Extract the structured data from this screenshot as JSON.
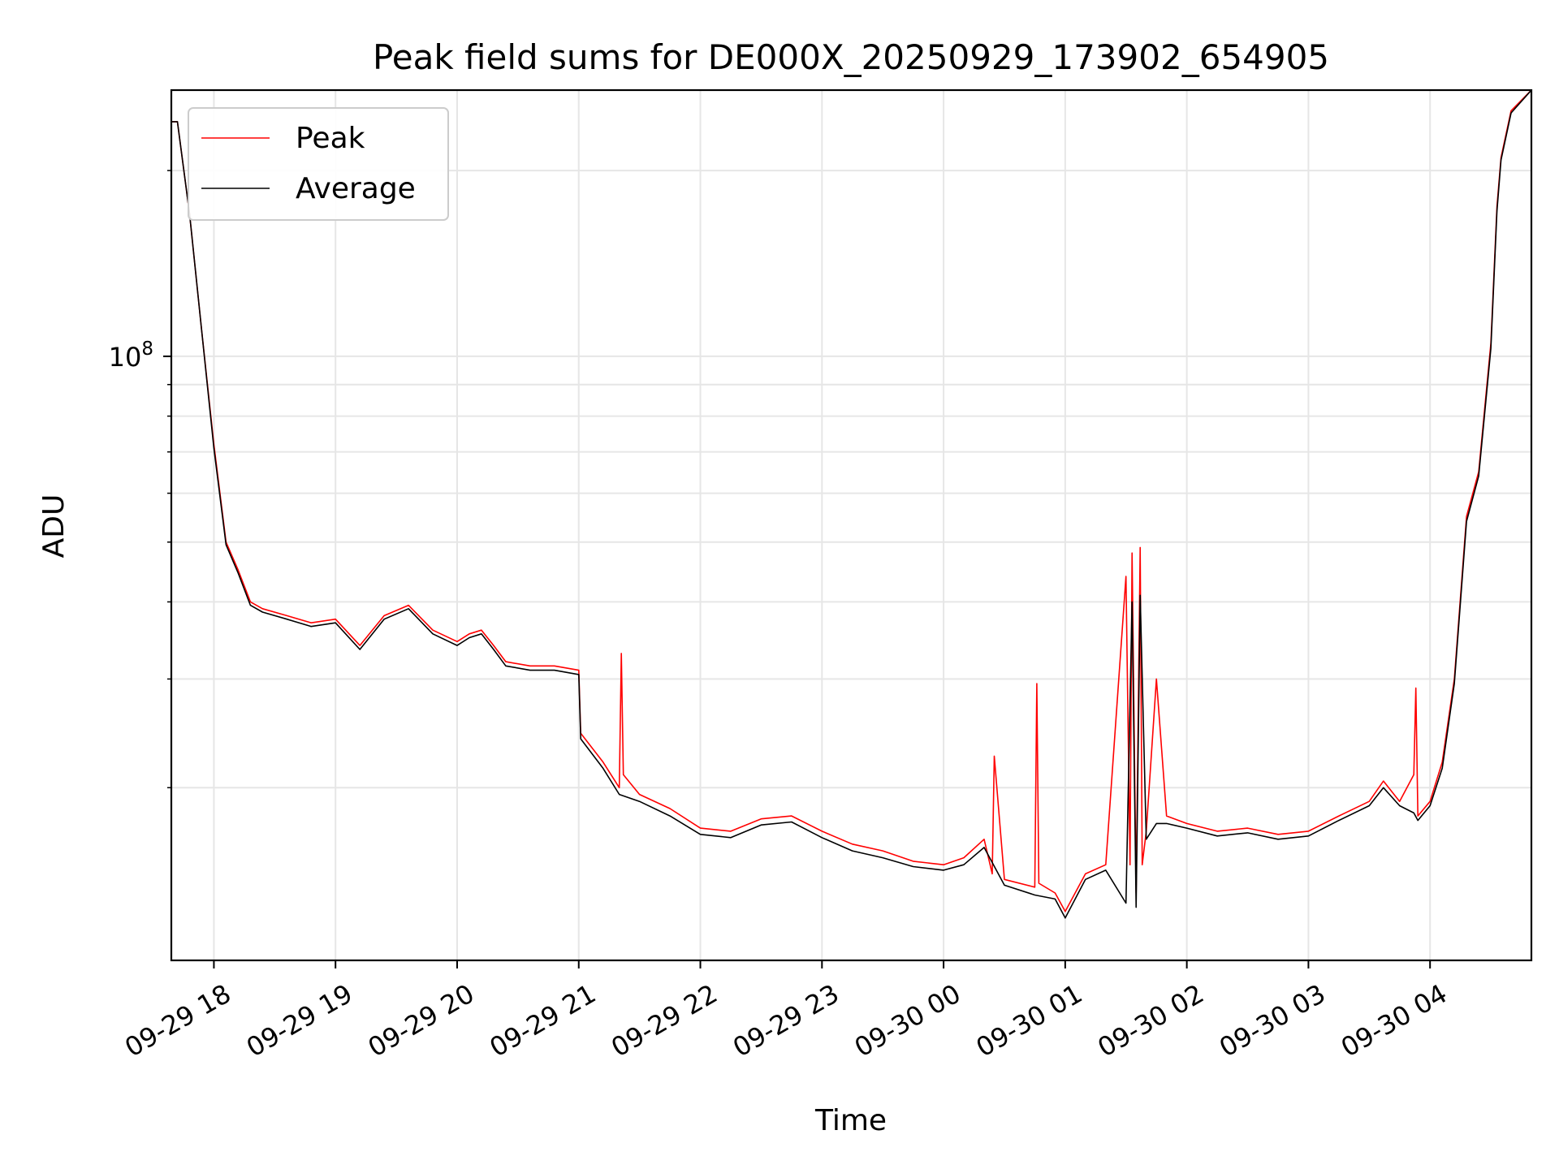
{
  "chart_data": {
    "type": "line",
    "title": "Peak field sums for DE000X_20250929_173902_654905",
    "xlabel": "Time",
    "ylabel": "ADU",
    "y_scale": "log",
    "ylim": [
      10500000,
      270000000
    ],
    "xlim": [
      "2025-09-29 17:39",
      "2025-09-30 04:50"
    ],
    "y_tick_labels": [
      {
        "value": 100000000,
        "label": "10^8"
      }
    ],
    "x_tick_labels": [
      "09-29 18",
      "09-29 19",
      "09-29 20",
      "09-29 21",
      "09-29 22",
      "09-29 23",
      "09-30 00",
      "09-30 01",
      "09-30 02",
      "09-30 03",
      "09-30 04"
    ],
    "x_ticks": [
      "2025-09-29 18:00",
      "2025-09-29 19:00",
      "2025-09-29 20:00",
      "2025-09-29 21:00",
      "2025-09-29 22:00",
      "2025-09-29 23:00",
      "2025-09-30 00:00",
      "2025-09-30 01:00",
      "2025-09-30 02:00",
      "2025-09-30 03:00",
      "2025-09-30 04:00"
    ],
    "grid": true,
    "legend_position": "upper-left",
    "series": [
      {
        "name": "Peak",
        "color": "#ff0000",
        "x": [
          "2025-09-29 17:39",
          "2025-09-29 17:42",
          "2025-09-29 17:48",
          "2025-09-29 17:54",
          "2025-09-29 18:00",
          "2025-09-29 18:06",
          "2025-09-29 18:12",
          "2025-09-29 18:18",
          "2025-09-29 18:24",
          "2025-09-29 18:36",
          "2025-09-29 18:48",
          "2025-09-29 19:00",
          "2025-09-29 19:12",
          "2025-09-29 19:24",
          "2025-09-29 19:36",
          "2025-09-29 19:48",
          "2025-09-29 20:00",
          "2025-09-29 20:06",
          "2025-09-29 20:12",
          "2025-09-29 20:18",
          "2025-09-29 20:24",
          "2025-09-29 20:36",
          "2025-09-29 20:48",
          "2025-09-29 21:00",
          "2025-09-29 21:01",
          "2025-09-29 21:12",
          "2025-09-29 21:20",
          "2025-09-29 21:21",
          "2025-09-29 21:22",
          "2025-09-29 21:30",
          "2025-09-29 21:45",
          "2025-09-29 22:00",
          "2025-09-29 22:15",
          "2025-09-29 22:30",
          "2025-09-29 22:45",
          "2025-09-29 23:00",
          "2025-09-29 23:15",
          "2025-09-29 23:30",
          "2025-09-29 23:45",
          "2025-09-30 00:00",
          "2025-09-30 00:10",
          "2025-09-30 00:20",
          "2025-09-30 00:24",
          "2025-09-30 00:25",
          "2025-09-30 00:30",
          "2025-09-30 00:45",
          "2025-09-30 00:46",
          "2025-09-30 00:47",
          "2025-09-30 00:55",
          "2025-09-30 01:00",
          "2025-09-30 01:10",
          "2025-09-30 01:20",
          "2025-09-30 01:30",
          "2025-09-30 01:32",
          "2025-09-30 01:33",
          "2025-09-30 01:35",
          "2025-09-30 01:37",
          "2025-09-30 01:38",
          "2025-09-30 01:40",
          "2025-09-30 01:45",
          "2025-09-30 01:50",
          "2025-09-30 02:00",
          "2025-09-30 02:15",
          "2025-09-30 02:30",
          "2025-09-30 02:45",
          "2025-09-30 03:00",
          "2025-09-30 03:15",
          "2025-09-30 03:30",
          "2025-09-30 03:37",
          "2025-09-30 03:45",
          "2025-09-30 03:52",
          "2025-09-30 03:53",
          "2025-09-30 03:54",
          "2025-09-30 04:00",
          "2025-09-30 04:06",
          "2025-09-30 04:12",
          "2025-09-30 04:18",
          "2025-09-30 04:24",
          "2025-09-30 04:30",
          "2025-09-30 04:33",
          "2025-09-30 04:35",
          "2025-09-30 04:40",
          "2025-09-30 04:50"
        ],
        "y": [
          240000000,
          240000000,
          170000000,
          110000000,
          72000000,
          50000000,
          45000000,
          40000000,
          39000000,
          38000000,
          37000000,
          37500000,
          34000000,
          38000000,
          39500000,
          36000000,
          34500000,
          35500000,
          36000000,
          34000000,
          32000000,
          31500000,
          31500000,
          31000000,
          24500000,
          22000000,
          20000000,
          33000000,
          21000000,
          19500000,
          18500000,
          17200000,
          17000000,
          17800000,
          18000000,
          17000000,
          16200000,
          15800000,
          15200000,
          15000000,
          15400000,
          16500000,
          14500000,
          22500000,
          14200000,
          13800000,
          29500000,
          14000000,
          13500000,
          12600000,
          14500000,
          15000000,
          44000000,
          15000000,
          48000000,
          13500000,
          49000000,
          15000000,
          17000000,
          30000000,
          18000000,
          17500000,
          17000000,
          17200000,
          16800000,
          17000000,
          18000000,
          19000000,
          20500000,
          19000000,
          21000000,
          29000000,
          18000000,
          19000000,
          22000000,
          30000000,
          55000000,
          65000000,
          105000000,
          175000000,
          210000000,
          250000000,
          270000000
        ]
      },
      {
        "name": "Average",
        "color": "#000000",
        "x": [
          "2025-09-29 17:39",
          "2025-09-29 17:42",
          "2025-09-29 17:48",
          "2025-09-29 17:54",
          "2025-09-29 18:00",
          "2025-09-29 18:06",
          "2025-09-29 18:12",
          "2025-09-29 18:18",
          "2025-09-29 18:24",
          "2025-09-29 18:36",
          "2025-09-29 18:48",
          "2025-09-29 19:00",
          "2025-09-29 19:12",
          "2025-09-29 19:24",
          "2025-09-29 19:36",
          "2025-09-29 19:48",
          "2025-09-29 20:00",
          "2025-09-29 20:06",
          "2025-09-29 20:12",
          "2025-09-29 20:18",
          "2025-09-29 20:24",
          "2025-09-29 20:36",
          "2025-09-29 20:48",
          "2025-09-29 21:00",
          "2025-09-29 21:01",
          "2025-09-29 21:12",
          "2025-09-29 21:20",
          "2025-09-29 21:30",
          "2025-09-29 21:45",
          "2025-09-29 22:00",
          "2025-09-29 22:15",
          "2025-09-29 22:30",
          "2025-09-29 22:45",
          "2025-09-29 23:00",
          "2025-09-29 23:15",
          "2025-09-29 23:30",
          "2025-09-29 23:45",
          "2025-09-30 00:00",
          "2025-09-30 00:10",
          "2025-09-30 00:20",
          "2025-09-30 00:30",
          "2025-09-30 00:45",
          "2025-09-30 00:55",
          "2025-09-30 01:00",
          "2025-09-30 01:10",
          "2025-09-30 01:20",
          "2025-09-30 01:30",
          "2025-09-30 01:33",
          "2025-09-30 01:35",
          "2025-09-30 01:37",
          "2025-09-30 01:40",
          "2025-09-30 01:45",
          "2025-09-30 01:50",
          "2025-09-30 02:00",
          "2025-09-30 02:15",
          "2025-09-30 02:30",
          "2025-09-30 02:45",
          "2025-09-30 03:00",
          "2025-09-30 03:15",
          "2025-09-30 03:30",
          "2025-09-30 03:37",
          "2025-09-30 03:45",
          "2025-09-30 03:52",
          "2025-09-30 03:54",
          "2025-09-30 04:00",
          "2025-09-30 04:06",
          "2025-09-30 04:12",
          "2025-09-30 04:18",
          "2025-09-30 04:24",
          "2025-09-30 04:30",
          "2025-09-30 04:33",
          "2025-09-30 04:35",
          "2025-09-30 04:40",
          "2025-09-30 04:50"
        ],
        "y": [
          240000000,
          240000000,
          170000000,
          110000000,
          71000000,
          49500000,
          44500000,
          39500000,
          38500000,
          37500000,
          36500000,
          37000000,
          33500000,
          37500000,
          39000000,
          35500000,
          34000000,
          35000000,
          35500000,
          33500000,
          31500000,
          31000000,
          31000000,
          30500000,
          24000000,
          21500000,
          19500000,
          19000000,
          18000000,
          16800000,
          16600000,
          17400000,
          17600000,
          16600000,
          15800000,
          15400000,
          14900000,
          14700000,
          15000000,
          16000000,
          13900000,
          13400000,
          13200000,
          12300000,
          14200000,
          14700000,
          13000000,
          40000000,
          12800000,
          41000000,
          16500000,
          17500000,
          17500000,
          17200000,
          16700000,
          16900000,
          16500000,
          16700000,
          17700000,
          18700000,
          20000000,
          18700000,
          18200000,
          17700000,
          18700000,
          21500000,
          29500000,
          54000000,
          64000000,
          103000000,
          172000000,
          208000000,
          248000000,
          270000000
        ]
      }
    ]
  }
}
